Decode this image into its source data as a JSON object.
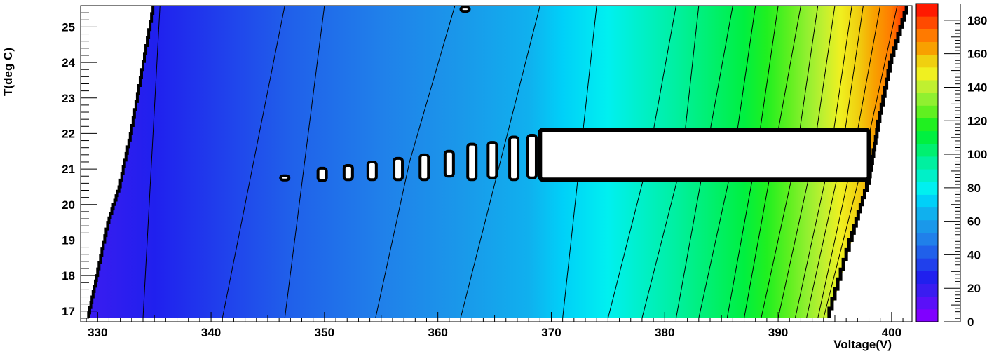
{
  "chart_data": {
    "type": "heatmap",
    "title": "",
    "xlabel": "Voltage(V)",
    "ylabel": "T(deg C)",
    "xlim": [
      328.5,
      401.8
    ],
    "ylim": [
      16.7,
      25.6
    ],
    "x_ticks": [
      "330",
      "340",
      "350",
      "360",
      "370",
      "380",
      "390",
      "400"
    ],
    "y_ticks": [
      "17",
      "18",
      "19",
      "20",
      "21",
      "22",
      "23",
      "24",
      "25"
    ],
    "z_ticks": [
      "0",
      "20",
      "40",
      "60",
      "80",
      "100",
      "120",
      "140",
      "160",
      "180"
    ],
    "zlim": [
      0,
      190
    ],
    "contour_levels": 25,
    "palette": [
      "#8000ff",
      "#5a10f8",
      "#3a1cf0",
      "#2020ee",
      "#2040ec",
      "#2060ea",
      "#2080ea",
      "#1a98ea",
      "#10b0ee",
      "#00d0f8",
      "#00f0f0",
      "#00f0c8",
      "#00f0a0",
      "#00f070",
      "#00f040",
      "#20f020",
      "#60f020",
      "#90f030",
      "#c0f030",
      "#f0f020",
      "#f0d010",
      "#f8a000",
      "#ff7a00",
      "#ff4a00",
      "#ff1a00"
    ],
    "contour_lines": [
      {
        "level": 10,
        "points": [
          [
            334.0,
            16.8
          ],
          [
            335.5,
            25.6
          ]
        ]
      },
      {
        "level": 20,
        "points": [
          [
            341.0,
            16.8
          ],
          [
            346.5,
            25.6
          ]
        ]
      },
      {
        "level": 30,
        "points": [
          [
            346.5,
            16.8
          ],
          [
            350.0,
            25.6
          ]
        ]
      },
      {
        "level": 40,
        "points": [
          [
            354.5,
            16.8
          ],
          [
            357.5,
            21.2
          ],
          [
            361.5,
            25.6
          ]
        ]
      },
      {
        "level": 50,
        "points": [
          [
            362.0,
            16.8
          ],
          [
            365.5,
            21.2
          ],
          [
            369.0,
            25.6
          ]
        ]
      },
      {
        "level": 60,
        "points": [
          [
            371.0,
            16.8
          ],
          [
            372.5,
            21.2
          ],
          [
            374.0,
            25.6
          ]
        ]
      },
      {
        "level": 70,
        "points": [
          [
            375.0,
            16.8
          ],
          [
            378.5,
            21.2
          ],
          [
            381.0,
            25.6
          ]
        ]
      },
      {
        "level": 80,
        "points": [
          [
            378.0,
            16.8
          ],
          [
            381.5,
            21.2
          ],
          [
            383.0,
            25.6
          ]
        ]
      },
      {
        "level": 90,
        "points": [
          [
            381.0,
            16.8
          ],
          [
            383.5,
            21.2
          ],
          [
            386.0,
            25.6
          ]
        ]
      },
      {
        "level": 100,
        "points": [
          [
            383.0,
            16.8
          ],
          [
            386.0,
            21.2
          ],
          [
            388.0,
            25.6
          ]
        ]
      },
      {
        "level": 110,
        "points": [
          [
            385.5,
            16.8
          ],
          [
            388.0,
            21.2
          ],
          [
            390.0,
            25.6
          ]
        ]
      },
      {
        "level": 120,
        "points": [
          [
            387.0,
            16.8
          ],
          [
            389.5,
            21.2
          ],
          [
            392.0,
            25.6
          ]
        ]
      },
      {
        "level": 130,
        "points": [
          [
            388.5,
            16.8
          ],
          [
            391.5,
            21.2
          ],
          [
            393.5,
            25.6
          ]
        ]
      },
      {
        "level": 140,
        "points": [
          [
            390.0,
            16.8
          ],
          [
            393.0,
            21.2
          ],
          [
            395.0,
            25.6
          ]
        ]
      },
      {
        "level": 150,
        "points": [
          [
            391.5,
            16.8
          ],
          [
            394.5,
            21.2
          ],
          [
            396.5,
            25.6
          ]
        ]
      },
      {
        "level": 160,
        "points": [
          [
            392.5,
            16.8
          ],
          [
            395.5,
            21.2
          ],
          [
            397.5,
            25.6
          ]
        ]
      },
      {
        "level": 170,
        "points": [
          [
            393.5,
            16.8
          ],
          [
            396.5,
            21.2
          ],
          [
            399.0,
            25.6
          ]
        ]
      },
      {
        "level": 180,
        "points": [
          [
            394.0,
            16.8
          ],
          [
            397.5,
            21.2
          ],
          [
            400.5,
            25.6
          ]
        ]
      }
    ],
    "no_data_band": {
      "y_from": 20.7,
      "y_to": 22.1,
      "x_from": 369.0,
      "x_to": 398.0
    },
    "left_edge": [
      [
        329.2,
        16.8
      ],
      [
        330.0,
        18.0
      ],
      [
        331.0,
        19.5
      ],
      [
        332.0,
        20.5
      ],
      [
        333.0,
        22.0
      ],
      [
        334.0,
        23.8
      ],
      [
        335.0,
        25.6
      ]
    ],
    "right_edge": [
      [
        394.5,
        16.8
      ],
      [
        396.5,
        19.0
      ],
      [
        398.0,
        20.6
      ],
      [
        398.8,
        22.1
      ],
      [
        400.0,
        24.0
      ],
      [
        401.5,
        25.6
      ]
    ],
    "islands": [
      {
        "x": 346.5,
        "y": 20.75,
        "h": 0.1
      },
      {
        "x": 349.8,
        "y": 20.85,
        "h": 0.35
      },
      {
        "x": 352.1,
        "y": 20.9,
        "h": 0.4
      },
      {
        "x": 354.2,
        "y": 20.95,
        "h": 0.5
      },
      {
        "x": 356.5,
        "y": 21.0,
        "h": 0.6
      },
      {
        "x": 358.8,
        "y": 21.05,
        "h": 0.7
      },
      {
        "x": 361.0,
        "y": 21.15,
        "h": 0.7
      },
      {
        "x": 363.0,
        "y": 21.2,
        "h": 1.0
      },
      {
        "x": 364.8,
        "y": 21.25,
        "h": 1.0
      },
      {
        "x": 366.7,
        "y": 21.3,
        "h": 1.2
      },
      {
        "x": 368.3,
        "y": 21.35,
        "h": 1.2
      },
      {
        "x": 362.4,
        "y": 25.5,
        "h": 0.1
      }
    ]
  }
}
